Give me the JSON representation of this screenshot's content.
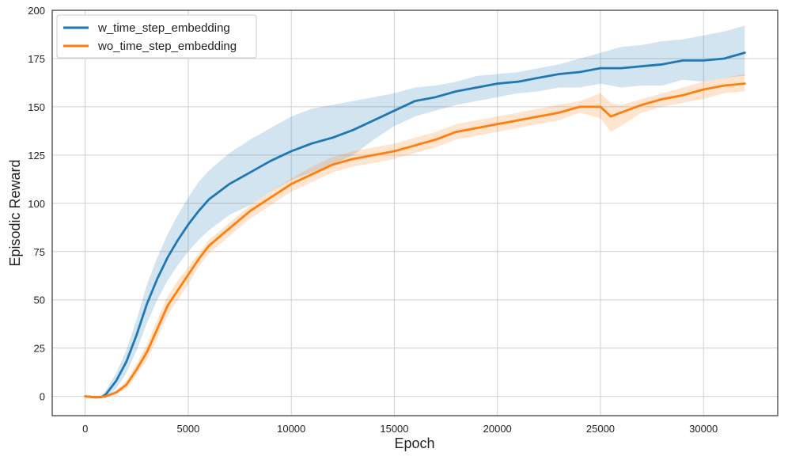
{
  "chart_data": {
    "type": "line",
    "title": "",
    "xlabel": "Epoch",
    "ylabel": "Episodic Reward",
    "xlim": [
      -1600,
      33600
    ],
    "ylim": [
      -10,
      200
    ],
    "xticks": [
      0,
      5000,
      10000,
      15000,
      20000,
      25000,
      30000
    ],
    "xtick_labels": [
      "0",
      "5000",
      "10000",
      "15000",
      "20000",
      "25000",
      "30000"
    ],
    "yticks": [
      0,
      25,
      50,
      75,
      100,
      125,
      150,
      175,
      200
    ],
    "ytick_labels": [
      "0",
      "25",
      "50",
      "75",
      "100",
      "125",
      "150",
      "175",
      "200"
    ],
    "grid": true,
    "legend_position": "top-left",
    "series": [
      {
        "name": "w_time_step_embedding",
        "color": "#1f77b4",
        "band_color": "#1f77b4",
        "x": [
          0,
          500,
          800,
          1000,
          1500,
          2000,
          2500,
          3000,
          3500,
          4000,
          4500,
          5000,
          5500,
          6000,
          7000,
          8000,
          9000,
          10000,
          11000,
          12000,
          13000,
          14000,
          15000,
          16000,
          17000,
          18000,
          19000,
          20000,
          21000,
          22000,
          23000,
          24000,
          25000,
          26000,
          27000,
          28000,
          29000,
          30000,
          31000,
          32000
        ],
        "y": [
          0,
          -0.5,
          -0.3,
          1,
          8,
          18,
          32,
          48,
          61,
          72,
          81,
          89,
          96,
          102,
          110,
          116,
          122,
          127,
          131,
          134,
          138,
          143,
          148,
          153,
          155,
          158,
          160,
          162,
          163,
          165,
          167,
          168,
          170,
          170,
          171,
          172,
          174,
          174,
          175,
          178
        ],
        "upper": [
          0.5,
          0,
          0.3,
          3,
          12,
          24,
          40,
          58,
          72,
          84,
          94,
          103,
          111,
          117,
          126,
          133,
          139,
          145,
          149,
          151,
          153,
          155,
          157,
          160,
          161,
          163,
          166,
          167,
          168,
          170,
          172,
          175,
          178,
          181,
          182,
          184,
          185,
          187,
          189,
          192
        ],
        "lower": [
          -0.5,
          -1,
          -1,
          -1,
          4,
          12,
          24,
          38,
          50,
          60,
          68,
          75,
          81,
          86,
          94,
          99,
          106,
          112,
          116,
          120,
          125,
          133,
          140,
          145,
          148,
          151,
          153,
          155,
          157,
          158,
          160,
          160,
          162,
          160,
          161,
          161,
          164,
          163,
          165,
          166
        ]
      },
      {
        "name": "wo_time_step_embedding",
        "color": "#ff7f0e",
        "band_color": "#ff7f0e",
        "x": [
          0,
          500,
          1000,
          1500,
          2000,
          2500,
          3000,
          3500,
          4000,
          4500,
          5000,
          5500,
          6000,
          7000,
          8000,
          9000,
          10000,
          11000,
          12000,
          13000,
          14000,
          15000,
          16000,
          17000,
          18000,
          19000,
          20000,
          21000,
          22000,
          23000,
          24000,
          25000,
          25500,
          26000,
          27000,
          28000,
          29000,
          30000,
          31000,
          32000
        ],
        "y": [
          0,
          -0.5,
          0,
          2,
          6,
          14,
          23,
          35,
          47,
          55,
          63,
          71,
          78,
          87,
          96,
          103,
          110,
          115,
          120,
          123,
          125,
          127,
          130,
          133,
          137,
          139,
          141,
          143,
          145,
          147,
          150,
          150,
          145,
          147,
          151,
          154,
          156,
          159,
          161,
          162
        ],
        "upper": [
          0.5,
          0,
          0.5,
          3,
          8,
          17,
          27,
          40,
          52,
          60,
          67,
          74,
          81,
          90,
          99,
          106,
          113,
          119,
          124,
          127,
          129,
          131,
          134,
          137,
          141,
          143,
          145,
          147,
          149,
          151,
          153,
          157,
          152,
          151,
          154,
          157,
          160,
          163,
          165,
          167
        ],
        "lower": [
          -0.5,
          -1,
          -0.5,
          1,
          4,
          11,
          19,
          30,
          42,
          50,
          58,
          67,
          74,
          83,
          92,
          99,
          106,
          111,
          116,
          119,
          121,
          123,
          126,
          129,
          133,
          135,
          137,
          139,
          141,
          143,
          147,
          144,
          137,
          140,
          147,
          150,
          152,
          154,
          157,
          158
        ]
      }
    ]
  }
}
